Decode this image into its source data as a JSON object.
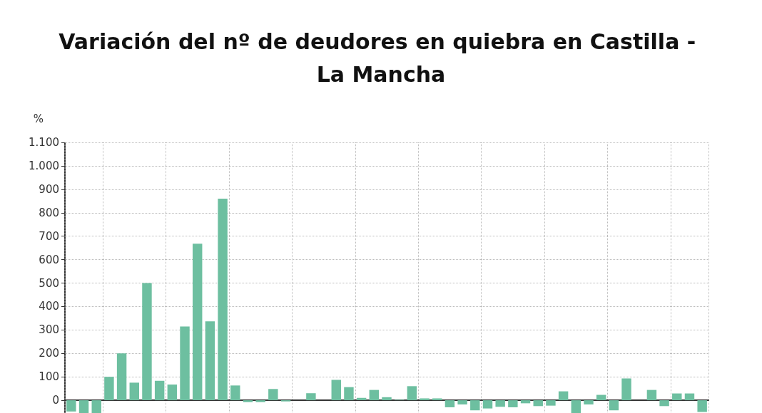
{
  "chart_data": {
    "type": "bar",
    "title": "Variación del nº de deudores en quiebra en Castilla - La Mancha",
    "ylabel": "%",
    "categories": [
      null,
      null,
      null,
      null,
      null,
      null,
      null,
      null,
      null,
      null,
      null,
      null,
      null,
      null,
      null,
      null,
      null,
      null,
      null,
      null,
      null,
      null,
      null,
      null,
      null,
      null,
      null,
      null,
      null,
      null,
      null,
      null,
      null,
      null,
      null,
      null,
      null,
      null,
      null,
      null,
      null,
      null,
      null,
      null,
      null,
      null,
      null,
      null,
      null,
      null,
      null
    ],
    "values": [
      -48,
      -55,
      -55,
      100,
      200,
      75,
      500,
      83,
      67,
      315,
      668,
      337,
      860,
      63,
      -8,
      -8,
      48,
      -5,
      0,
      30,
      0,
      87,
      56,
      10,
      44,
      13,
      2,
      60,
      8,
      8,
      -30,
      -18,
      -43,
      -35,
      -28,
      -30,
      -13,
      -25,
      -23,
      38,
      -55,
      -18,
      23,
      -43,
      93,
      0,
      44,
      -25,
      29,
      29,
      -50
    ],
    "color": "#6dbfa0",
    "ylim": [
      -100,
      1100
    ],
    "yticks": [
      0,
      100,
      200,
      300,
      400,
      500,
      600,
      700,
      800,
      900,
      {
        "value": 1000,
        "label": "1.000"
      },
      {
        "value": 1100,
        "label": "1.100"
      }
    ],
    "grid": true
  }
}
